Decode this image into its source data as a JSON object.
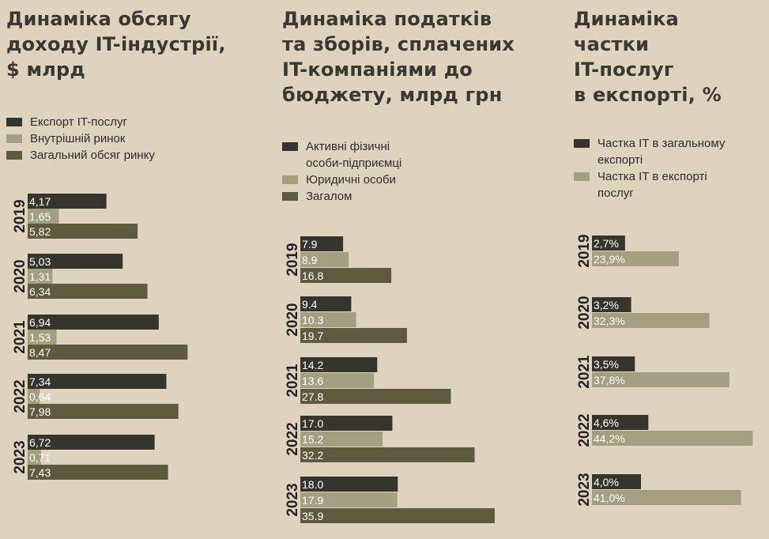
{
  "colors": {
    "background": "#ddd3bf",
    "dark": "#35342d",
    "light": "#a39f81",
    "olive": "#5e5a3d",
    "label_on_bar": "#ffffff",
    "label_on_bg": "#7a7660"
  },
  "chart_data": [
    {
      "type": "bar",
      "orientation": "horizontal",
      "title": "Динаміка обсягу\nдоходу IT-індустрії,\n$ млрд",
      "categories": [
        "2019",
        "2020",
        "2021",
        "2022",
        "2023"
      ],
      "series": [
        {
          "name": "Експорт IT-послуг",
          "values": [
            4.17,
            5.03,
            6.94,
            7.34,
            6.72
          ],
          "labels": [
            "4,17",
            "5,03",
            "6,94",
            "7,34",
            "6,72"
          ]
        },
        {
          "name": "Внутрішній ринок",
          "values": [
            1.65,
            1.31,
            1.53,
            0.64,
            0.71
          ],
          "labels": [
            "1,65",
            "1,31",
            "1,53",
            "0,64",
            "0,71"
          ]
        },
        {
          "name": "Загальний обсяг ринку",
          "values": [
            5.82,
            6.34,
            8.47,
            7.98,
            7.43
          ],
          "labels": [
            "5,82",
            "6,34",
            "8,47",
            "7,98",
            "7,43"
          ]
        }
      ]
    },
    {
      "type": "bar",
      "orientation": "horizontal",
      "title": "Динаміка податків\nта зборів, сплачених\nIT-компаніями до\nбюджету, млрд грн",
      "categories": [
        "2019",
        "2020",
        "2021",
        "2022",
        "2023"
      ],
      "series": [
        {
          "name": "Активні фізичні\nособи-підприємці",
          "values": [
            7.9,
            9.4,
            14.2,
            17.0,
            18.0
          ],
          "labels": [
            "7.9",
            "9.4",
            "14.2",
            "17.0",
            "18.0"
          ]
        },
        {
          "name": "Юридичні особи",
          "values": [
            8.9,
            10.3,
            13.6,
            15.2,
            17.9
          ],
          "labels": [
            "8.9",
            "10.3",
            "13.6",
            "15.2",
            "17.9"
          ]
        },
        {
          "name": "Загалом",
          "values": [
            16.8,
            19.7,
            27.8,
            32.2,
            35.9
          ],
          "labels": [
            "16.8",
            "19.7",
            "27.8",
            "32.2",
            "35.9"
          ]
        }
      ]
    },
    {
      "type": "bar",
      "orientation": "horizontal",
      "title": "Динаміка\nчастки\nIT-послуг\nв експорті, %",
      "categories": [
        "2019",
        "2020",
        "2021",
        "2022",
        "2023"
      ],
      "series": [
        {
          "name": "Частка IT в загальному\nекспорті",
          "values": [
            2.7,
            3.2,
            3.5,
            4.6,
            4.0
          ],
          "labels": [
            "2,7%",
            "3,2%",
            "3,5%",
            "4,6%",
            "4,0%"
          ]
        },
        {
          "name": "Частка IT в експорті\nпослуг",
          "values": [
            23.9,
            32.3,
            37.8,
            44.2,
            41.0
          ],
          "labels": [
            "23,9%",
            "32,3%",
            "37,8%",
            "44,2%",
            "41,0%"
          ]
        }
      ]
    }
  ]
}
